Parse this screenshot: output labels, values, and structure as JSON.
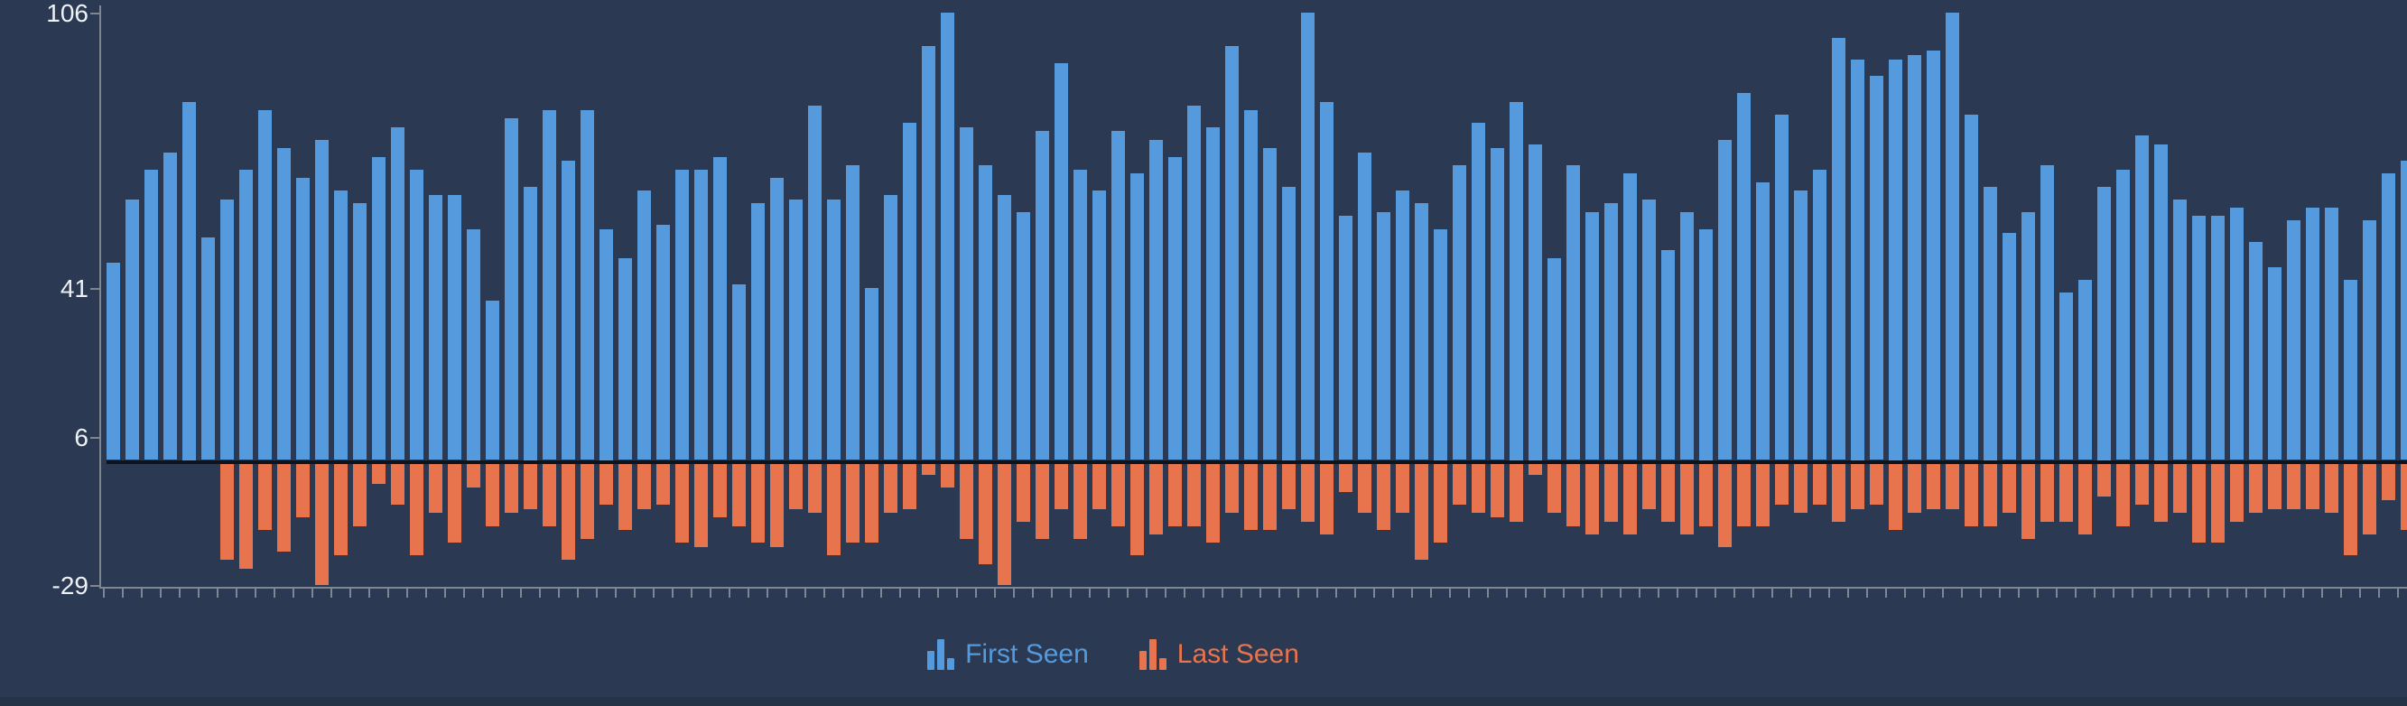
{
  "colors": {
    "background": "#2b3a52",
    "first_seen": "#549add",
    "last_seen": "#e8744e",
    "axis": "#7e868f",
    "tick_label_text": "#eef2f7",
    "zero_baseline": "#0d1420",
    "bottom_strip": "#253349"
  },
  "icons": {
    "legend_marker": "bar-chart-icon"
  },
  "chart_data": {
    "type": "bar",
    "title": "",
    "xlabel": "",
    "ylabel": "",
    "legend_position": "bottom-center",
    "grid": false,
    "y_axis": {
      "ticks": [
        106,
        41,
        6,
        -29
      ],
      "tick_labels": [
        "106",
        "41",
        "6",
        "-29"
      ],
      "min": -29,
      "max": 106
    },
    "x_axis": {
      "tick_labels_visible": false,
      "bar_count": 122
    },
    "series": [
      {
        "name": "First Seen",
        "color": "#549add",
        "values": [
          47,
          62,
          69,
          73,
          85,
          53,
          62,
          69,
          83,
          74,
          67,
          76,
          64,
          61,
          72,
          79,
          69,
          63,
          63,
          55,
          38,
          81,
          65,
          83,
          71,
          83,
          55,
          48,
          64,
          56,
          69,
          69,
          72,
          42,
          61,
          67,
          62,
          84,
          62,
          70,
          41,
          63,
          80,
          98,
          106,
          79,
          70,
          63,
          59,
          78,
          94,
          69,
          64,
          78,
          68,
          76,
          72,
          84,
          79,
          98,
          83,
          74,
          65,
          106,
          85,
          58,
          73,
          59,
          64,
          61,
          55,
          70,
          80,
          74,
          85,
          75,
          48,
          70,
          59,
          61,
          68,
          62,
          50,
          59,
          55,
          76,
          87,
          66,
          82,
          64,
          69,
          100,
          95,
          91,
          95,
          96,
          97,
          106,
          82,
          65,
          54,
          59,
          70,
          40,
          43,
          65,
          69,
          77,
          75,
          62,
          58,
          58,
          60,
          52,
          46,
          57,
          60,
          60,
          43,
          57,
          68,
          71
        ]
      },
      {
        "name": "Last Seen",
        "color": "#e8744e",
        "values": [
          0,
          0,
          0,
          0,
          0,
          0,
          -23,
          -25,
          -16,
          -21,
          -13,
          -29,
          -22,
          -15,
          -5,
          -10,
          -22,
          -12,
          -19,
          -6,
          -15,
          -12,
          -11,
          -15,
          -23,
          -18,
          -10,
          -16,
          -11,
          -10,
          -19,
          -20,
          -13,
          -15,
          -19,
          -20,
          -11,
          -12,
          -22,
          -19,
          -19,
          -12,
          -11,
          -3,
          -6,
          -18,
          -24,
          -29,
          -14,
          -18,
          -11,
          -18,
          -11,
          -15,
          -22,
          -17,
          -15,
          -15,
          -19,
          -12,
          -16,
          -16,
          -11,
          -14,
          -17,
          -7,
          -12,
          -16,
          -12,
          -23,
          -19,
          -10,
          -12,
          -13,
          -14,
          -3,
          -12,
          -15,
          -17,
          -14,
          -17,
          -11,
          -14,
          -17,
          -15,
          -20,
          -15,
          -15,
          -10,
          -12,
          -10,
          -14,
          -11,
          -10,
          -16,
          -12,
          -11,
          -11,
          -15,
          -15,
          -12,
          -18,
          -14,
          -14,
          -17,
          -8,
          -15,
          -10,
          -14,
          -12,
          -19,
          -19,
          -14,
          -12,
          -11,
          -11,
          -11,
          -12,
          -22,
          -17,
          -9,
          -16
        ]
      }
    ]
  }
}
